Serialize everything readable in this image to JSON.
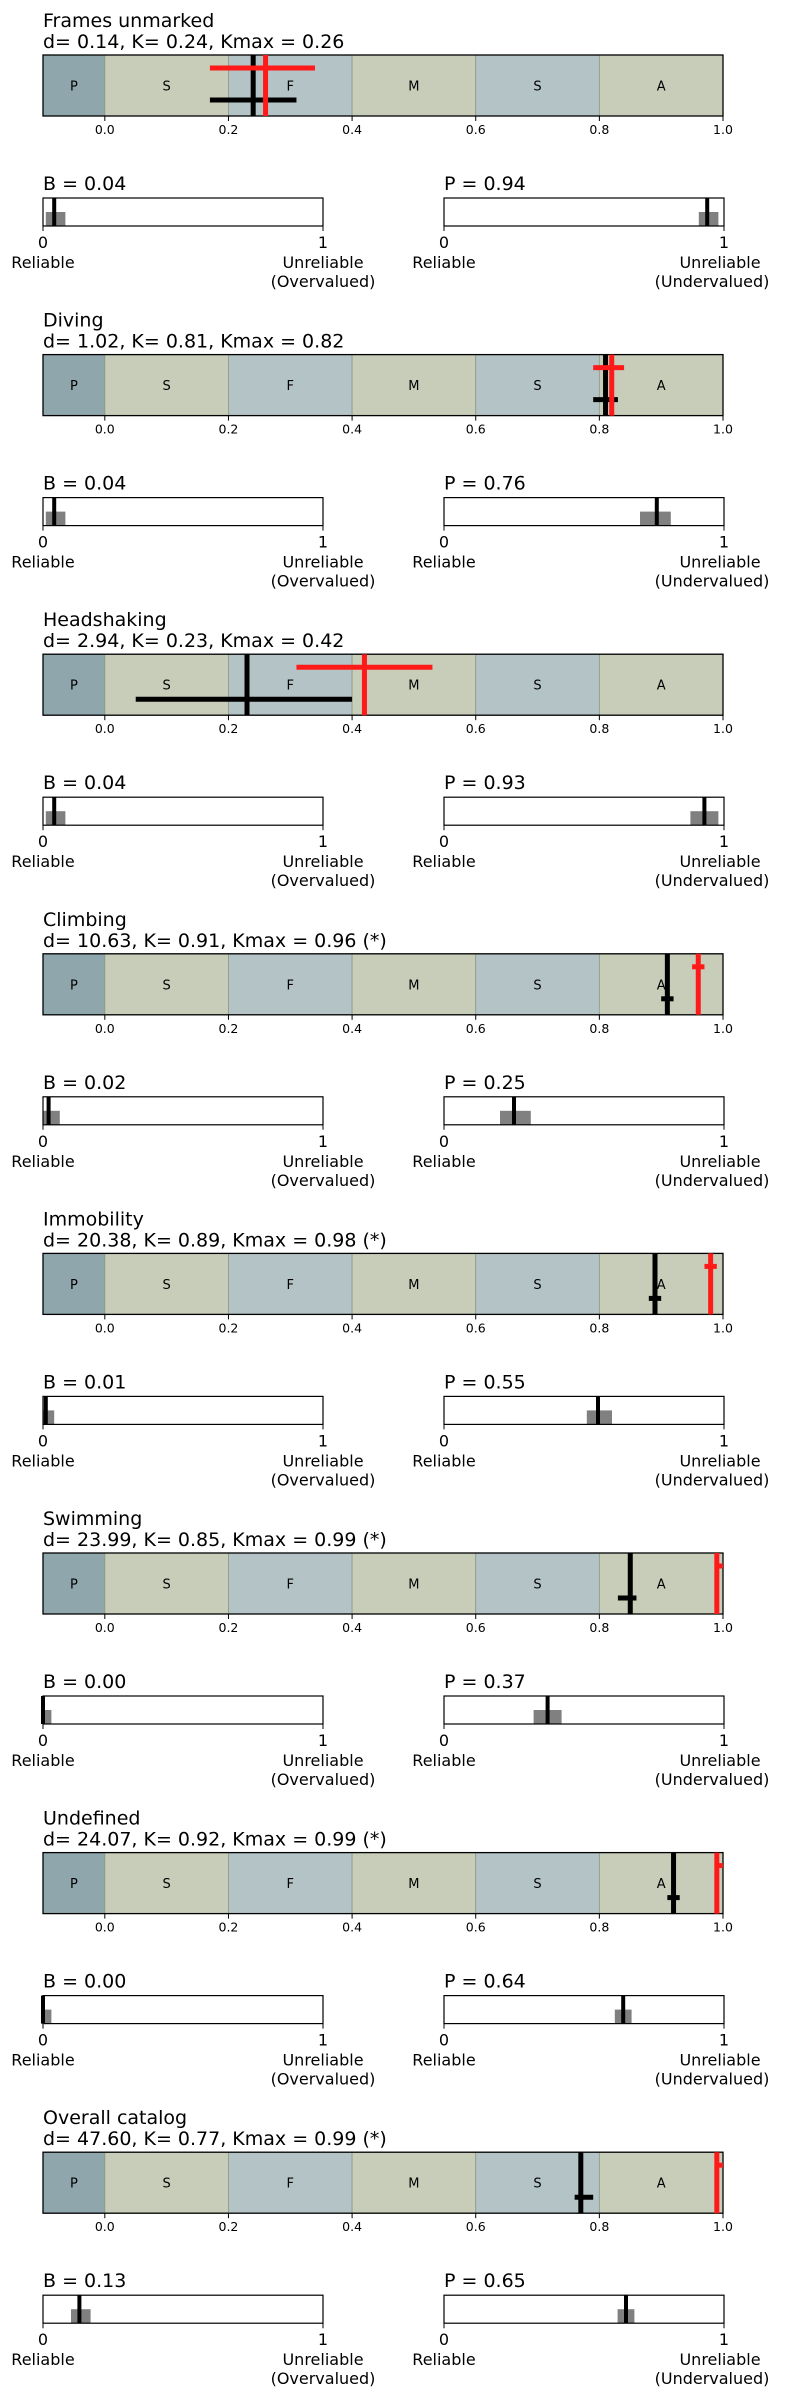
{
  "chart_data": {
    "type": "kappa-benchmark-panels",
    "scale": {
      "zones": [
        {
          "label": "P",
          "from": -0.1,
          "to": 0.0,
          "color": "#8fa6ad"
        },
        {
          "label": "S",
          "from": 0.0,
          "to": 0.2,
          "color": "#c7cdb9"
        },
        {
          "label": "F",
          "from": 0.2,
          "to": 0.4,
          "color": "#b3c3c6"
        },
        {
          "label": "M",
          "from": 0.4,
          "to": 0.6,
          "color": "#c7cdb9"
        },
        {
          "label": "S",
          "from": 0.6,
          "to": 0.8,
          "color": "#b3c3c6"
        },
        {
          "label": "A",
          "from": 0.8,
          "to": 1.0,
          "color": "#c7cdb9"
        }
      ],
      "ticks": [
        "0.0",
        "0.2",
        "0.4",
        "0.6",
        "0.8",
        "1.0"
      ],
      "tick_values": [
        0.0,
        0.2,
        0.4,
        0.6,
        0.8,
        1.0
      ],
      "xlim": [
        -0.1,
        1.0
      ]
    },
    "small_axis": {
      "tick_left": "0",
      "tick_right": "1",
      "left_label": "Reliable",
      "b_right_label": [
        "Unreliable",
        "(Overvalued)"
      ],
      "p_right_label": [
        "Unreliable",
        "(Undervalued)"
      ]
    },
    "panels": [
      {
        "name": "Frames unmarked",
        "title": "Frames unmarked",
        "subtitle": "d= 0.14, K= 0.24, Kmax = 0.26",
        "kappa": 0.24,
        "kappa_ci": [
          0.17,
          0.31
        ],
        "kmax": 0.26,
        "kmax_ci": [
          0.17,
          0.34
        ],
        "b_label": "B = 0.04",
        "b": 0.04,
        "b_hist": [
          0.01,
          0.08
        ],
        "p_label": "P = 0.94",
        "p": 0.94,
        "p_hist": [
          0.91,
          0.98
        ]
      },
      {
        "name": "Diving",
        "title": "Diving",
        "subtitle": "d= 1.02, K= 0.81, Kmax = 0.82",
        "kappa": 0.81,
        "kappa_ci": [
          0.79,
          0.83
        ],
        "kmax": 0.82,
        "kmax_ci": [
          0.79,
          0.84
        ],
        "b_label": "B = 0.04",
        "b": 0.04,
        "b_hist": [
          0.01,
          0.08
        ],
        "p_label": "P = 0.76",
        "p": 0.76,
        "p_hist": [
          0.7,
          0.81
        ]
      },
      {
        "name": "Headshaking",
        "title": "Headshaking",
        "subtitle": "d= 2.94, K= 0.23, Kmax = 0.42",
        "kappa": 0.23,
        "kappa_ci": [
          0.05,
          0.4
        ],
        "kmax": 0.42,
        "kmax_ci": [
          0.31,
          0.53
        ],
        "b_label": "B = 0.04",
        "b": 0.04,
        "b_hist": [
          0.01,
          0.08
        ],
        "p_label": "P = 0.93",
        "p": 0.93,
        "p_hist": [
          0.88,
          0.98
        ]
      },
      {
        "name": "Climbing",
        "title": "Climbing",
        "subtitle": "d= 10.63, K= 0.91, Kmax = 0.96 (*)",
        "kappa": 0.91,
        "kappa_ci": [
          0.9,
          0.92
        ],
        "kmax": 0.96,
        "kmax_ci": [
          0.95,
          0.97
        ],
        "b_label": "B = 0.02",
        "b": 0.02,
        "b_hist": [
          0.0,
          0.06
        ],
        "p_label": "P = 0.25",
        "p": 0.25,
        "p_hist": [
          0.2,
          0.31
        ]
      },
      {
        "name": "Immobility",
        "title": "Immobility",
        "subtitle": "d= 20.38, K= 0.89, Kmax = 0.98 (*)",
        "kappa": 0.89,
        "kappa_ci": [
          0.88,
          0.9
        ],
        "kmax": 0.98,
        "kmax_ci": [
          0.97,
          0.99
        ],
        "b_label": "B = 0.01",
        "b": 0.01,
        "b_hist": [
          0.0,
          0.04
        ],
        "p_label": "P = 0.55",
        "p": 0.55,
        "p_hist": [
          0.51,
          0.6
        ]
      },
      {
        "name": "Swimming",
        "title": "Swimming",
        "subtitle": "d= 23.99, K= 0.85, Kmax = 0.99 (*)",
        "kappa": 0.85,
        "kappa_ci": [
          0.83,
          0.86
        ],
        "kmax": 0.99,
        "kmax_ci": [
          0.99,
          1.0
        ],
        "b_label": "B = 0.00",
        "b": 0.0,
        "b_hist": [
          0.0,
          0.03
        ],
        "p_label": "P = 0.37",
        "p": 0.37,
        "p_hist": [
          0.32,
          0.42
        ]
      },
      {
        "name": "Undefined",
        "title": "Undefined",
        "subtitle": "d= 24.07, K= 0.92, Kmax = 0.99 (*)",
        "kappa": 0.92,
        "kappa_ci": [
          0.91,
          0.93
        ],
        "kmax": 0.99,
        "kmax_ci": [
          0.99,
          1.0
        ],
        "b_label": "B = 0.00",
        "b": 0.0,
        "b_hist": [
          0.0,
          0.03
        ],
        "p_label": "P = 0.64",
        "p": 0.64,
        "p_hist": [
          0.61,
          0.67
        ]
      },
      {
        "name": "Overall catalog",
        "title": "Overall catalog",
        "subtitle": "d= 47.60, K= 0.77, Kmax = 0.99 (*)",
        "kappa": 0.77,
        "kappa_ci": [
          0.76,
          0.79
        ],
        "kmax": 0.99,
        "kmax_ci": [
          0.99,
          1.0
        ],
        "b_label": "B = 0.13",
        "b": 0.13,
        "b_hist": [
          0.1,
          0.17
        ],
        "p_label": "P = 0.65",
        "p": 0.65,
        "p_hist": [
          0.62,
          0.68
        ]
      }
    ]
  },
  "colors": {
    "kappa": "#000000",
    "kmax": "#ff1a1a",
    "hist": "#808080",
    "zone_border": "#8a9a88"
  }
}
